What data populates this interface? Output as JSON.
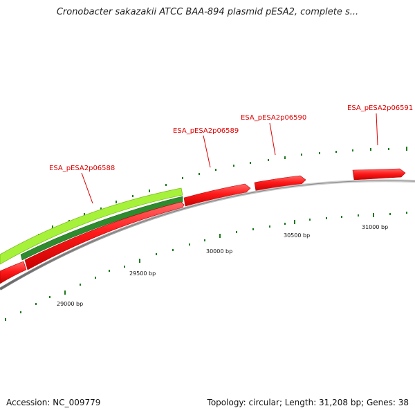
{
  "title": "Cronobacter sakazakii ATCC BAA-894 plasmid pESA2, complete s...",
  "footer": {
    "accession": "Accession: NC_009779",
    "summary": "Topology: circular; Length: 31,208 bp; Genes: 38"
  },
  "colors": {
    "gene": "#ff1a1a",
    "gene_dark": "#b30000",
    "feature_light": "#a6f13a",
    "feature_dark": "#2e8b2e",
    "backbone": "#8c8c8c",
    "tick": "#1d7a1d",
    "label": "#e00000"
  },
  "gene_labels": [
    {
      "text": "ESA_pESA2p06588"
    },
    {
      "text": "ESA_pESA2p06589"
    },
    {
      "text": "ESA_pESA2p06590"
    },
    {
      "text": "ESA_pESA2p06591"
    }
  ],
  "bp_labels": [
    {
      "text": "29000 bp"
    },
    {
      "text": "29500 bp"
    },
    {
      "text": "30000 bp"
    },
    {
      "text": "30500 bp"
    },
    {
      "text": "31000 bp"
    }
  ]
}
